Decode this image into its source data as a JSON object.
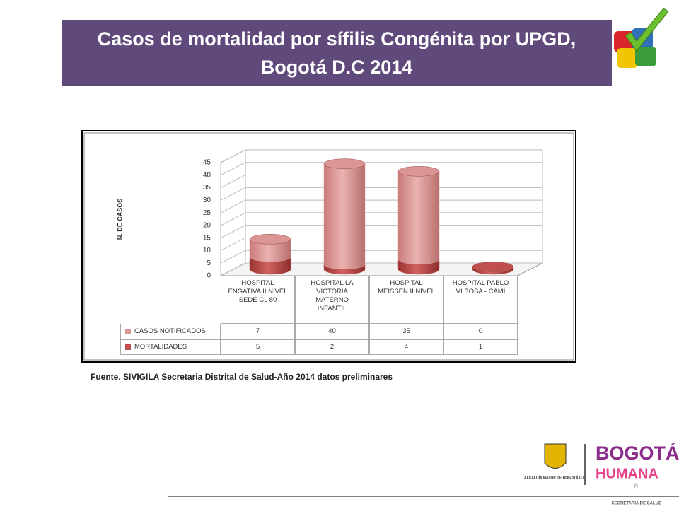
{
  "chart_data": {
    "type": "bar3d-stacked",
    "title": "Casos  de mortalidad por sífilis Congénita por UPGD, Bogotá D.C 2014",
    "y_label": "N. DE CASOS",
    "categories": [
      "HOSPITAL ENGATIVA II NIVEL SEDE CL 80",
      "HOSPITAL LA VICTORIA MATERNO INFANTIL",
      "HOSPITAL MEISSEN II NIVEL",
      "HOSPITAL PABLO VI BOSA - CAMI"
    ],
    "series": [
      {
        "name": "CASOS NOTIFICADOS",
        "color": "#d99694",
        "values": [
          7,
          40,
          35,
          0
        ]
      },
      {
        "name": "MORTALIDADES",
        "color": "#c0504d",
        "values": [
          5,
          2,
          4,
          1
        ]
      }
    ],
    "stacked": true,
    "ylim": [
      0,
      45
    ],
    "yticks": [
      0,
      5,
      10,
      15,
      20,
      25,
      30,
      35,
      40,
      45
    ],
    "grid": true,
    "source": "Fuente. SIVIGILA Secretaria Distrital de Salud-Año 2014 datos preliminares"
  },
  "footer": {
    "page_number": "8",
    "alcaldia": "ALCALDÍA MAYOR DE BOGOTÁ D.C.",
    "brand_top": "BOGOTÁ",
    "brand_bottom": "HUMANA",
    "secretaria": "SECRETARÍA DE SALUD"
  }
}
